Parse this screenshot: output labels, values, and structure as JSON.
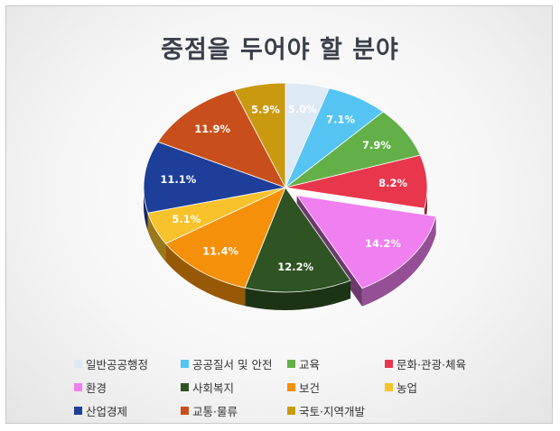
{
  "chart_data": {
    "type": "pie",
    "title": "중점을 두어야 할 분야",
    "slices": [
      {
        "name": "일반공공행정",
        "value": 5.0,
        "label": "5.0%",
        "color": "#dde9f5"
      },
      {
        "name": "공공질서 및 안전",
        "value": 7.1,
        "label": "7.1%",
        "color": "#55c4f3"
      },
      {
        "name": "교육",
        "value": 7.9,
        "label": "7.9%",
        "color": "#62b047"
      },
      {
        "name": "문화·관광·체육",
        "value": 8.2,
        "label": "8.2%",
        "color": "#e8374c"
      },
      {
        "name": "환경",
        "value": 14.2,
        "label": "14.2%",
        "color": "#f07ff0",
        "exploded": true
      },
      {
        "name": "사회복지",
        "value": 12.2,
        "label": "12.2%",
        "color": "#2f5323"
      },
      {
        "name": "보건",
        "value": 11.4,
        "label": "11.4%",
        "color": "#f5900a"
      },
      {
        "name": "농업",
        "value": 5.1,
        "label": "5.1%",
        "color": "#f7c22b"
      },
      {
        "name": "산업경제",
        "value": 11.1,
        "label": "11.1%",
        "color": "#1e3f99"
      },
      {
        "name": "교통·물류",
        "value": 11.9,
        "label": "11.9%",
        "color": "#c84f1b"
      },
      {
        "name": "국토·지역개발",
        "value": 5.9,
        "label": "5.9%",
        "color": "#c99a10"
      }
    ],
    "legend_position": "bottom"
  }
}
